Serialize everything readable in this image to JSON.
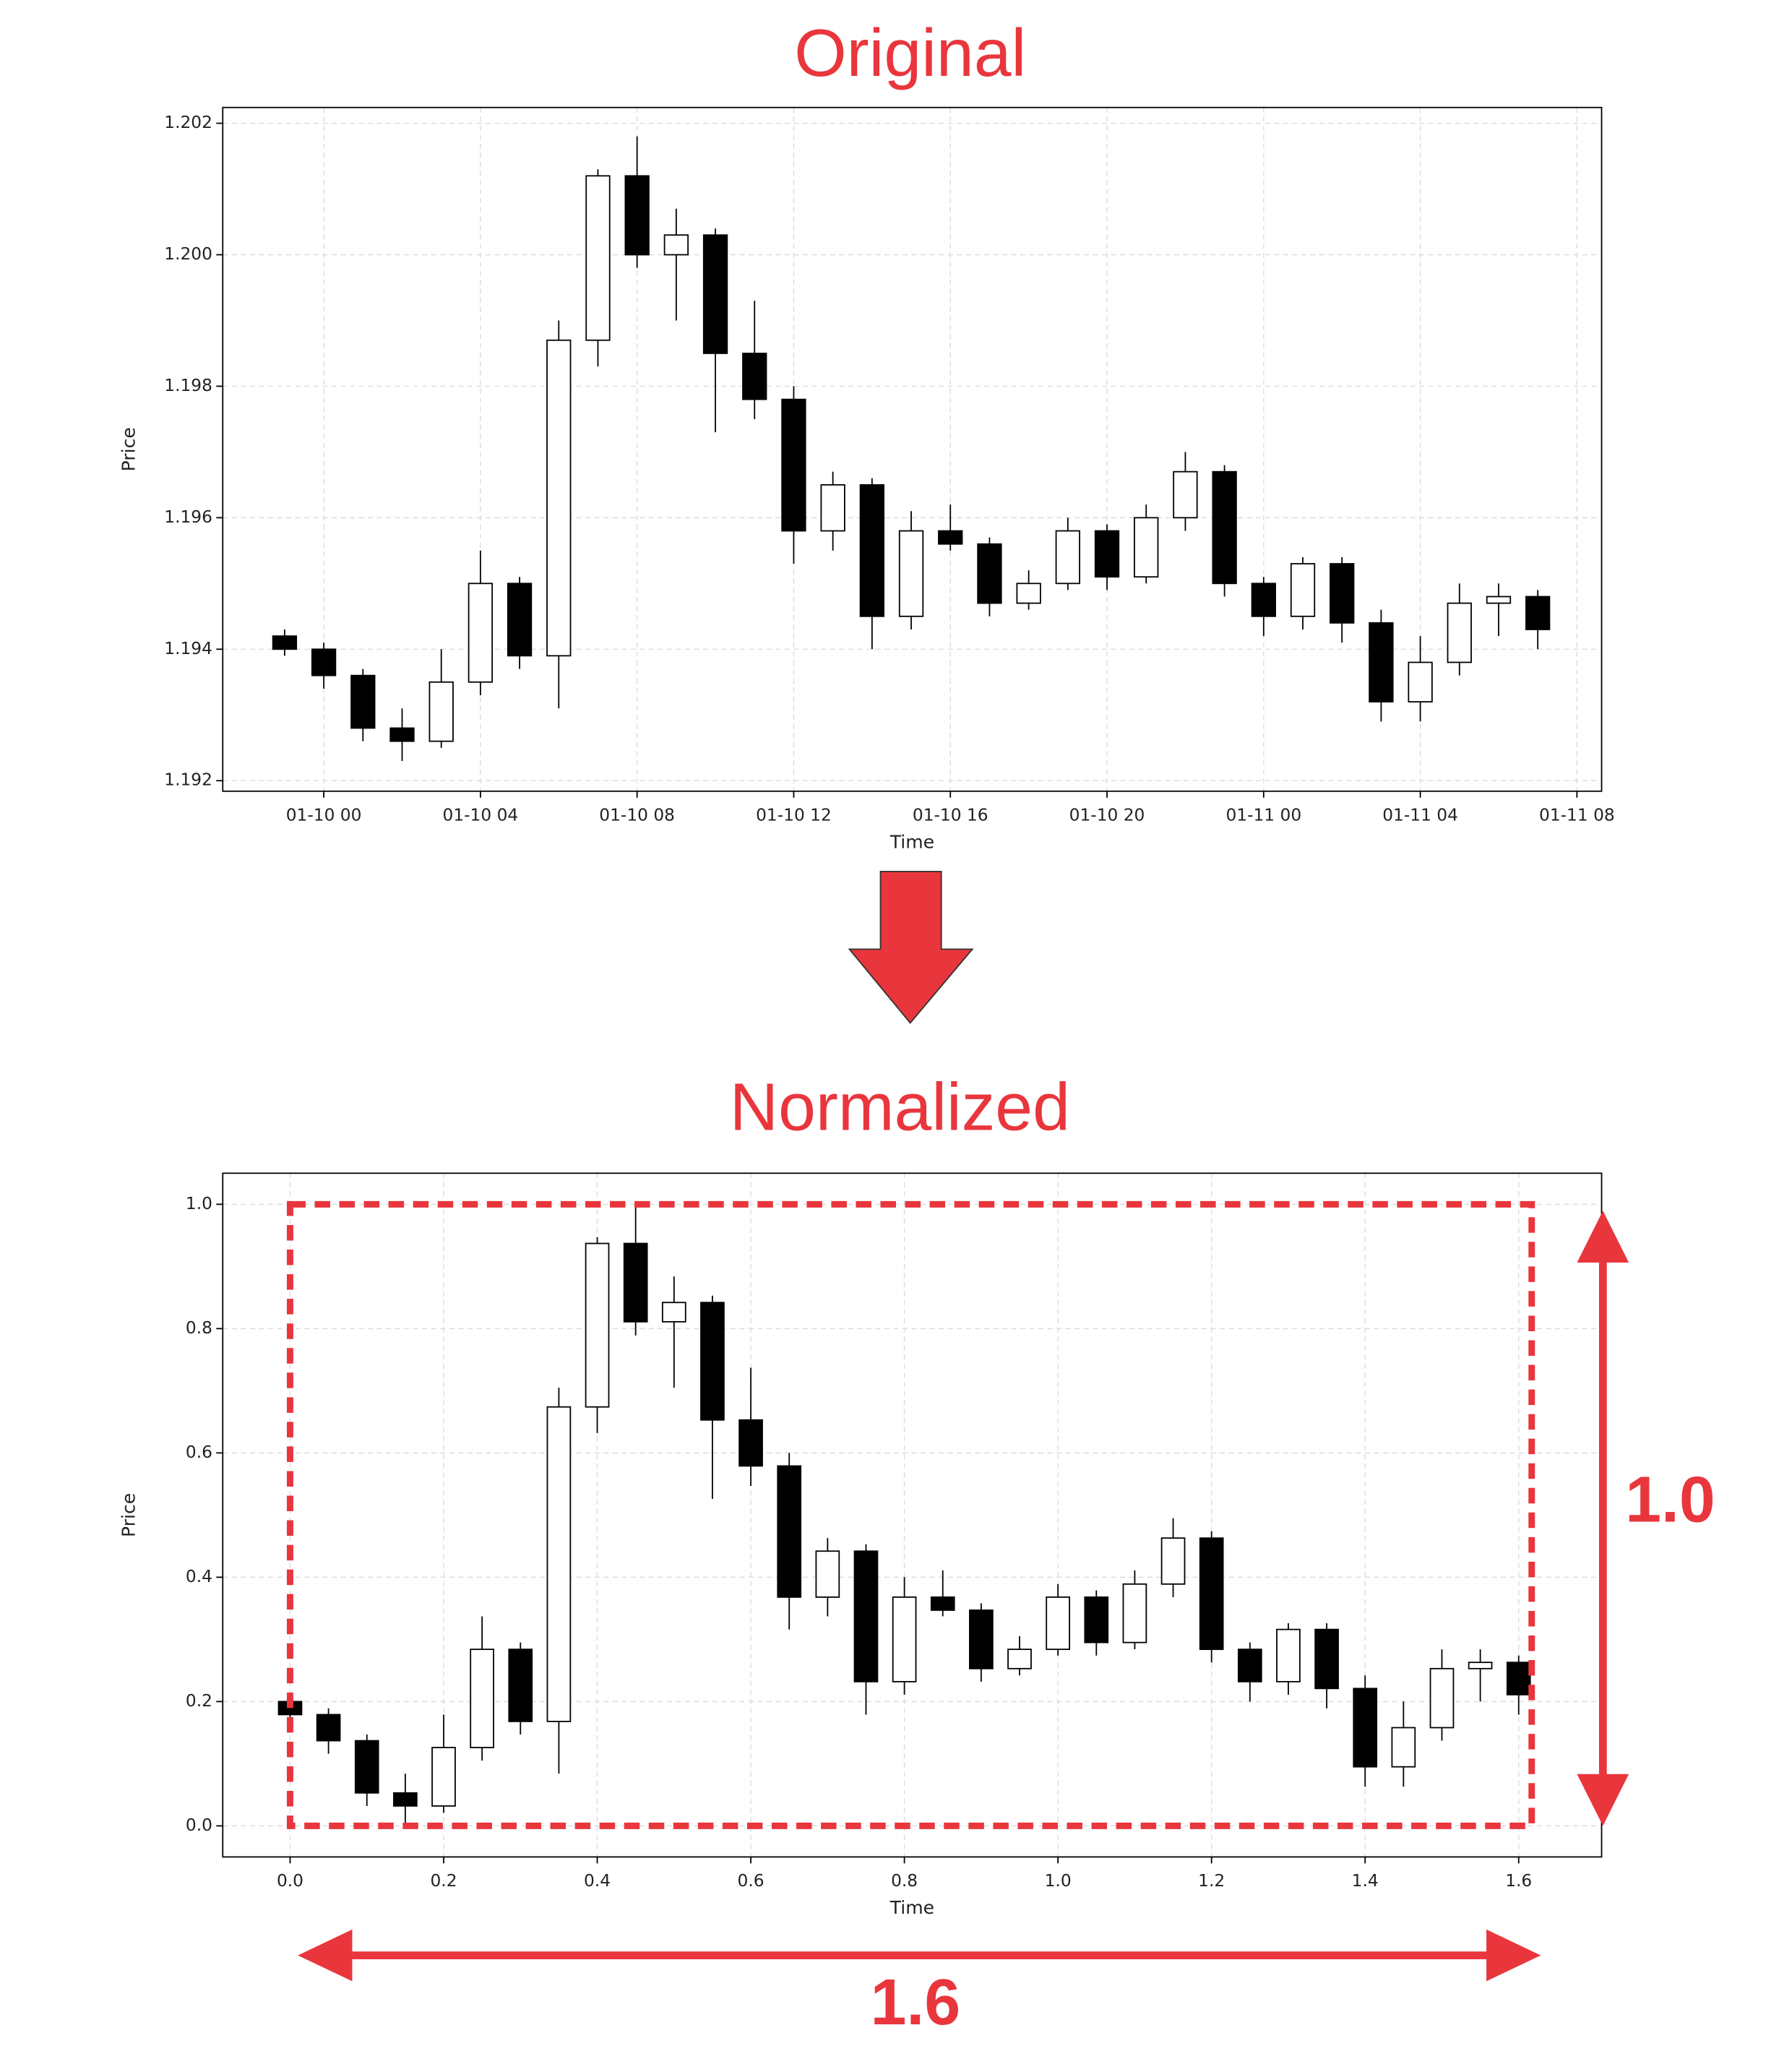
{
  "chart_data": [
    {
      "type": "candlestick",
      "title": "Original",
      "x_label": "Time",
      "y_label": "Price",
      "x": [
        -1,
        0,
        1,
        2,
        3,
        4,
        5,
        6,
        7,
        8,
        9,
        10,
        11,
        12,
        13,
        14,
        15,
        16,
        17,
        18,
        19,
        20,
        21,
        22,
        23,
        24,
        25,
        26,
        27,
        28,
        29,
        30,
        31
      ],
      "open": [
        1.1942,
        1.194,
        1.1936,
        1.1928,
        1.1926,
        1.1935,
        1.195,
        1.1939,
        1.1987,
        1.2012,
        1.2,
        1.2003,
        1.1985,
        1.1978,
        1.1958,
        1.1965,
        1.1945,
        1.1958,
        1.1956,
        1.1947,
        1.195,
        1.1958,
        1.1951,
        1.196,
        1.1967,
        1.195,
        1.1945,
        1.1953,
        1.1944,
        1.1932,
        1.1938,
        1.1947,
        1.1948
      ],
      "high": [
        1.1943,
        1.1941,
        1.1937,
        1.1931,
        1.194,
        1.1955,
        1.1951,
        1.199,
        1.2013,
        1.2018,
        1.2007,
        1.2004,
        1.1993,
        1.198,
        1.1967,
        1.1966,
        1.1961,
        1.1962,
        1.1957,
        1.1952,
        1.196,
        1.1959,
        1.1962,
        1.197,
        1.1968,
        1.1951,
        1.1954,
        1.1954,
        1.1946,
        1.1942,
        1.195,
        1.195,
        1.1949
      ],
      "low": [
        1.1939,
        1.1934,
        1.1926,
        1.1923,
        1.1925,
        1.1933,
        1.1937,
        1.1931,
        1.1983,
        1.1998,
        1.199,
        1.1973,
        1.1975,
        1.1953,
        1.1955,
        1.194,
        1.1943,
        1.1955,
        1.1945,
        1.1946,
        1.1949,
        1.1949,
        1.195,
        1.1958,
        1.1948,
        1.1942,
        1.1943,
        1.1941,
        1.1929,
        1.1929,
        1.1936,
        1.1942,
        1.194
      ],
      "close": [
        1.194,
        1.1936,
        1.1928,
        1.1926,
        1.1935,
        1.195,
        1.1939,
        1.1987,
        1.2012,
        1.2,
        1.2003,
        1.1985,
        1.1978,
        1.1958,
        1.1965,
        1.1945,
        1.1958,
        1.1956,
        1.1947,
        1.195,
        1.1958,
        1.1951,
        1.196,
        1.1967,
        1.195,
        1.1945,
        1.1953,
        1.1944,
        1.1932,
        1.1938,
        1.1947,
        1.1948,
        1.1943
      ],
      "xlim": [
        -2.58,
        32.63
      ],
      "ylim": [
        1.19184,
        1.20224
      ],
      "xticks": [
        {
          "value": 0,
          "label": "01-10 00"
        },
        {
          "value": 4,
          "label": "01-10 04"
        },
        {
          "value": 8,
          "label": "01-10 08"
        },
        {
          "value": 12,
          "label": "01-10 12"
        },
        {
          "value": 16,
          "label": "01-10 16"
        },
        {
          "value": 20,
          "label": "01-10 20"
        },
        {
          "value": 24,
          "label": "01-11 00"
        },
        {
          "value": 28,
          "label": "01-11 04"
        },
        {
          "value": 32,
          "label": "01-11 08"
        }
      ],
      "yticks": [
        1.192,
        1.194,
        1.196,
        1.198,
        {
          "value": 1.2,
          "label": "1.200"
        },
        1.202
      ],
      "grid": true,
      "up_color": "#ffffff",
      "down_color": "#000000",
      "edge_color": "#000000"
    },
    {
      "type": "candlestick",
      "title": "Normalized",
      "x_label": "Time",
      "y_label": "Price",
      "x": [
        0,
        0.05,
        0.1,
        0.15,
        0.2,
        0.25,
        0.3,
        0.35,
        0.4,
        0.45,
        0.5,
        0.55,
        0.6,
        0.65,
        0.7,
        0.75,
        0.8,
        0.85,
        0.9,
        0.95,
        1.0,
        1.05,
        1.1,
        1.15,
        1.2,
        1.25,
        1.3,
        1.35,
        1.4,
        1.45,
        1.5,
        1.55,
        1.6
      ],
      "open": [
        0.2,
        0.179,
        0.137,
        0.053,
        0.032,
        0.126,
        0.284,
        0.168,
        0.674,
        0.937,
        0.811,
        0.842,
        0.653,
        0.579,
        0.368,
        0.442,
        0.232,
        0.368,
        0.347,
        0.253,
        0.284,
        0.368,
        0.295,
        0.389,
        0.463,
        0.284,
        0.232,
        0.316,
        0.221,
        0.095,
        0.158,
        0.253,
        0.263
      ],
      "high": [
        0.211,
        0.189,
        0.147,
        0.084,
        0.179,
        0.337,
        0.295,
        0.705,
        0.947,
        1.0,
        0.884,
        0.853,
        0.737,
        0.6,
        0.463,
        0.453,
        0.4,
        0.411,
        0.358,
        0.305,
        0.389,
        0.379,
        0.411,
        0.495,
        0.474,
        0.295,
        0.326,
        0.326,
        0.242,
        0.2,
        0.284,
        0.284,
        0.274
      ],
      "low": [
        0.168,
        0.116,
        0.032,
        0.0,
        0.021,
        0.105,
        0.147,
        0.084,
        0.632,
        0.789,
        0.705,
        0.526,
        0.547,
        0.316,
        0.337,
        0.179,
        0.211,
        0.337,
        0.232,
        0.242,
        0.274,
        0.274,
        0.284,
        0.368,
        0.263,
        0.2,
        0.211,
        0.189,
        0.063,
        0.063,
        0.137,
        0.2,
        0.179
      ],
      "close": [
        0.179,
        0.137,
        0.053,
        0.032,
        0.126,
        0.284,
        0.168,
        0.674,
        0.937,
        0.811,
        0.842,
        0.653,
        0.579,
        0.368,
        0.442,
        0.232,
        0.368,
        0.347,
        0.253,
        0.284,
        0.368,
        0.295,
        0.389,
        0.463,
        0.284,
        0.232,
        0.316,
        0.221,
        0.095,
        0.158,
        0.253,
        0.263,
        0.211
      ],
      "xlim": [
        -0.0877,
        1.708
      ],
      "ylim": [
        -0.05,
        1.05
      ],
      "xticks": [
        {
          "value": 0,
          "label": "0.0"
        },
        0.2,
        0.4,
        0.6,
        0.8,
        {
          "value": 1,
          "label": "1.0"
        },
        1.2,
        1.4,
        1.6
      ],
      "yticks": [
        {
          "value": 0,
          "label": "0.0"
        },
        0.2,
        0.4,
        0.6,
        0.8,
        {
          "value": 1,
          "label": "1.0"
        }
      ],
      "grid": true,
      "up_color": "#ffffff",
      "down_color": "#000000",
      "edge_color": "#000000",
      "annotations": [
        "1.0",
        "1.6"
      ]
    }
  ]
}
